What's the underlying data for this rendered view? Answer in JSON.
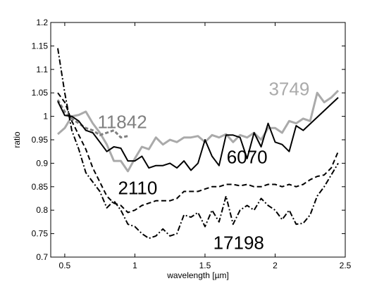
{
  "chart_data": {
    "type": "line",
    "xlabel": "wavelength [µm]",
    "ylabel": "ratio",
    "xlim": [
      0.4,
      2.5
    ],
    "ylim": [
      0.7,
      1.2
    ],
    "xticks": [
      0.5,
      1,
      1.5,
      2,
      2.5
    ],
    "xtick_labels": [
      "0.5",
      "1",
      "1.5",
      "2",
      "2.5"
    ],
    "yticks": [
      0.7,
      0.75,
      0.8,
      0.85,
      0.9,
      0.95,
      1.0,
      1.05,
      1.1,
      1.15,
      1.2
    ],
    "ytick_labels": [
      "0.7",
      "0.75",
      "0.8",
      "0.85",
      "0.9",
      "0.95",
      "1",
      "1.05",
      "1.1",
      "1.15",
      "1.2"
    ],
    "grid": false,
    "series": [
      {
        "name": "3749",
        "color": "#aaaaaa",
        "dash": "solid",
        "width": 3,
        "label_pos": [
          2.1,
          1.045
        ],
        "x": [
          0.45,
          0.5,
          0.55,
          0.6,
          0.65,
          0.7,
          0.75,
          0.8,
          0.85,
          0.9,
          0.95,
          1.0,
          1.05,
          1.1,
          1.15,
          1.2,
          1.25,
          1.3,
          1.35,
          1.4,
          1.45,
          1.5,
          1.55,
          1.6,
          1.65,
          1.7,
          1.75,
          1.8,
          1.85,
          1.9,
          1.95,
          2.0,
          2.05,
          2.1,
          2.15,
          2.2,
          2.25,
          2.3,
          2.35,
          2.4,
          2.45
        ],
        "y": [
          0.962,
          0.975,
          1.0,
          1.003,
          1.01,
          0.985,
          0.965,
          0.94,
          0.905,
          0.905,
          0.883,
          0.91,
          0.935,
          0.93,
          0.955,
          0.94,
          0.95,
          0.945,
          0.955,
          0.955,
          0.958,
          0.945,
          0.96,
          0.955,
          0.962,
          0.945,
          0.96,
          0.955,
          0.965,
          0.95,
          0.975,
          0.975,
          0.965,
          0.99,
          0.985,
          0.995,
          0.99,
          1.05,
          1.03,
          1.04,
          1.055
        ]
      },
      {
        "name": "11842",
        "color": "#808080",
        "dash": "5,3",
        "width": 3,
        "label_pos": [
          0.91,
          0.975
        ],
        "x": [
          0.45,
          0.5,
          0.55,
          0.6,
          0.65,
          0.7,
          0.75,
          0.8,
          0.85,
          0.9,
          0.95
        ],
        "y": [
          1.035,
          1.01,
          0.995,
          0.985,
          0.975,
          0.97,
          0.96,
          0.965,
          0.97,
          0.955,
          0.958
        ]
      },
      {
        "name": "6070",
        "color": "#000000",
        "dash": "solid",
        "width": 2,
        "label_pos": [
          1.8,
          0.9
        ],
        "x": [
          0.45,
          0.5,
          0.55,
          0.6,
          0.65,
          0.7,
          0.75,
          0.8,
          0.85,
          0.9,
          0.95,
          1.0,
          1.05,
          1.1,
          1.15,
          1.2,
          1.25,
          1.3,
          1.35,
          1.4,
          1.45,
          1.5,
          1.55,
          1.6,
          1.65,
          1.7,
          1.75,
          1.8,
          1.85,
          1.9,
          1.95,
          2.0,
          2.05,
          2.1,
          2.15,
          2.2,
          2.45
        ],
        "y": [
          1.032,
          1.002,
          1.0,
          0.99,
          0.97,
          0.965,
          0.945,
          0.925,
          0.935,
          0.932,
          0.905,
          0.905,
          0.915,
          0.89,
          0.895,
          0.895,
          0.9,
          0.89,
          0.905,
          0.885,
          0.9,
          0.95,
          0.915,
          0.895,
          0.96,
          0.96,
          0.955,
          0.91,
          0.965,
          0.935,
          0.985,
          0.945,
          0.94,
          0.925,
          0.98,
          0.97,
          1.04
        ]
      },
      {
        "name": "2110",
        "color": "#000000",
        "dash": "7,4",
        "width": 2,
        "label_pos": [
          1.02,
          0.834
        ],
        "x": [
          0.45,
          0.5,
          0.55,
          0.6,
          0.65,
          0.7,
          0.75,
          0.8,
          0.85,
          0.9,
          0.95,
          1.0,
          1.05,
          1.1,
          1.15,
          1.2,
          1.25,
          1.3,
          1.35,
          1.4,
          1.45,
          1.5,
          1.55,
          1.6,
          1.65,
          1.7,
          1.75,
          1.8,
          1.85,
          1.9,
          1.95,
          2.0,
          2.05,
          2.1,
          2.15,
          2.2,
          2.25,
          2.3,
          2.35,
          2.4,
          2.45
        ],
        "y": [
          1.05,
          1.03,
          0.99,
          0.96,
          0.93,
          0.89,
          0.86,
          0.83,
          0.815,
          0.81,
          0.795,
          0.8,
          0.81,
          0.815,
          0.82,
          0.82,
          0.82,
          0.825,
          0.84,
          0.84,
          0.84,
          0.845,
          0.85,
          0.85,
          0.855,
          0.855,
          0.852,
          0.855,
          0.85,
          0.85,
          0.855,
          0.855,
          0.85,
          0.855,
          0.85,
          0.855,
          0.865,
          0.872,
          0.875,
          0.89,
          0.925
        ]
      },
      {
        "name": "17198",
        "color": "#000000",
        "dash": "8,3,2,3",
        "width": 2,
        "label_pos": [
          1.74,
          0.717
        ],
        "x": [
          0.45,
          0.5,
          0.55,
          0.6,
          0.65,
          0.7,
          0.75,
          0.8,
          0.85,
          0.9,
          0.95,
          1.0,
          1.05,
          1.1,
          1.15,
          1.2,
          1.25,
          1.3,
          1.35,
          1.4,
          1.45,
          1.5,
          1.55,
          1.6,
          1.65,
          1.7,
          1.75,
          1.8,
          1.85,
          1.9,
          1.95,
          2.0,
          2.05,
          2.1,
          2.15,
          2.2,
          2.25,
          2.3,
          2.35,
          2.4,
          2.45
        ],
        "y": [
          1.145,
          1.05,
          0.97,
          0.93,
          0.88,
          0.86,
          0.84,
          0.805,
          0.82,
          0.8,
          0.77,
          0.765,
          0.75,
          0.74,
          0.745,
          0.76,
          0.745,
          0.75,
          0.79,
          0.785,
          0.795,
          0.765,
          0.8,
          0.775,
          0.83,
          0.77,
          0.8,
          0.81,
          0.8,
          0.825,
          0.81,
          0.8,
          0.78,
          0.8,
          0.77,
          0.772,
          0.79,
          0.83,
          0.85,
          0.875,
          0.9
        ]
      }
    ]
  }
}
